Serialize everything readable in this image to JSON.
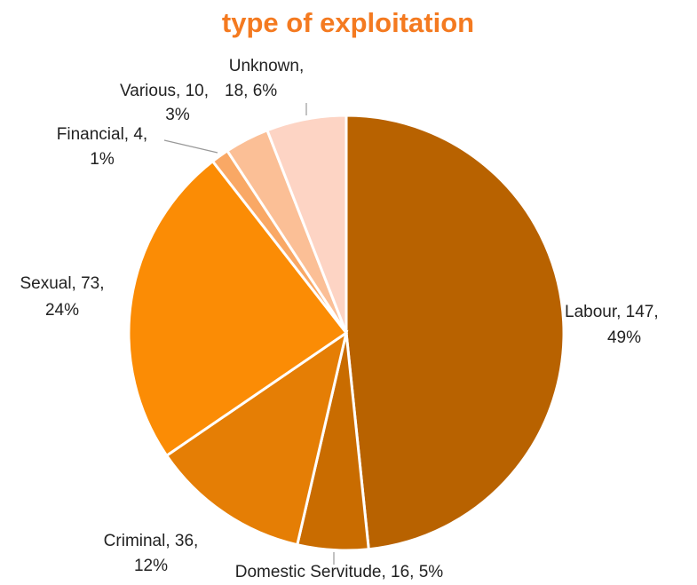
{
  "chart_data": {
    "type": "pie",
    "title": "type of exploitation",
    "values": [
      147,
      16,
      36,
      73,
      4,
      10,
      18
    ],
    "value_labels": [
      [
        "Labour, 147,",
        "49%"
      ],
      [
        "Domestic Servitude, 16, 5%"
      ],
      [
        "Criminal,  36,",
        "12%"
      ],
      [
        "Sexual, 73,",
        "24%"
      ],
      [
        "Financial, 4,",
        "1%"
      ],
      [
        "Various, 10,",
        "3%"
      ],
      [
        "Unknown,",
        "18, 6%"
      ]
    ],
    "colors": [
      "#b86200",
      "#c96c00",
      "#e57e05",
      "#fb8c05",
      "#f9a865",
      "#fbbf96",
      "#fdd4c4"
    ]
  }
}
